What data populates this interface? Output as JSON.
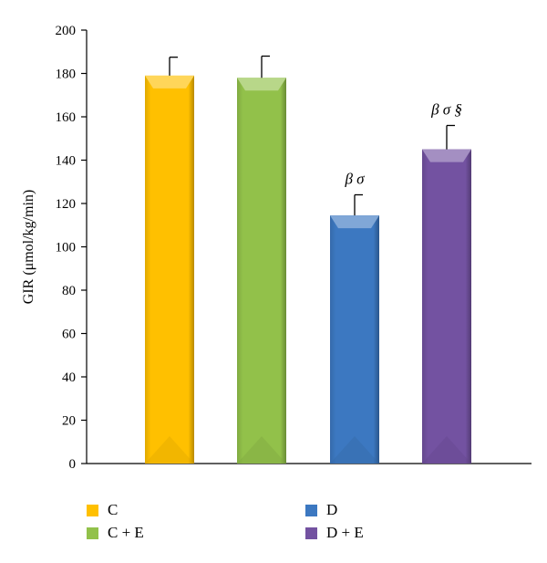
{
  "chart_data": {
    "type": "bar",
    "title": "",
    "xlabel": "",
    "ylabel": "GIR (μmol/kg/min)",
    "ylim": [
      0,
      200
    ],
    "yticks": [
      0,
      20,
      40,
      60,
      80,
      100,
      120,
      140,
      160,
      180,
      200
    ],
    "categories": [
      "C",
      "C + E",
      "D",
      "D + E"
    ],
    "values": [
      179,
      178,
      114.5,
      145
    ],
    "error_upper": [
      187.5,
      188,
      124,
      156
    ],
    "annotations": [
      "",
      "",
      "β σ",
      "β σ §"
    ],
    "colors": [
      "#FFC000",
      "#92C14A",
      "#3C78C1",
      "#7352A1"
    ],
    "grid": false,
    "legend_position": "bottom",
    "legend": [
      {
        "label": "C",
        "color": "#FFC000"
      },
      {
        "label": "D",
        "color": "#3C78C1"
      },
      {
        "label": "C + E",
        "color": "#92C14A"
      },
      {
        "label": "D + E",
        "color": "#7352A1"
      }
    ]
  }
}
